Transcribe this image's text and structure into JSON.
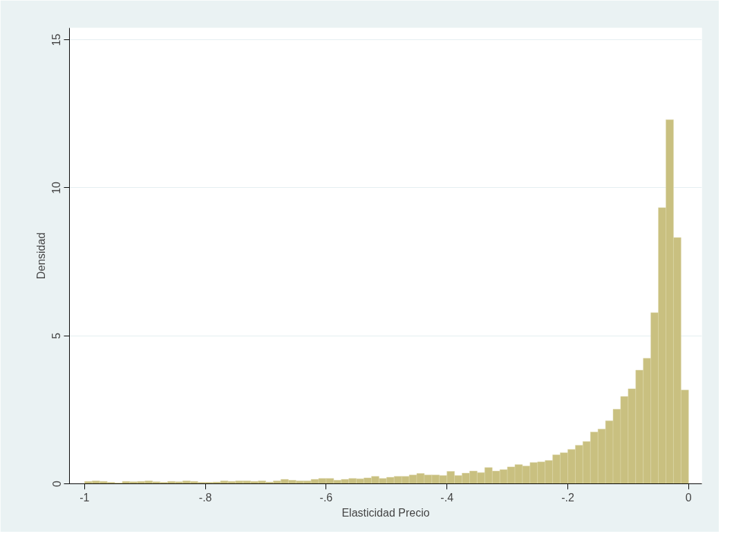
{
  "chart_data": {
    "type": "histogram",
    "xlabel": "Elasticidad Precio",
    "ylabel": "Densidad",
    "color": "#c9c080",
    "bins": [
      -1,
      -0.9875,
      -0.975,
      -0.9625,
      -0.95,
      -0.9375,
      -0.925,
      -0.9125,
      -0.9,
      -0.8875,
      -0.875,
      -0.8625,
      -0.85,
      -0.8375,
      -0.825,
      -0.8125,
      -0.8,
      -0.7875,
      -0.775,
      -0.7625,
      -0.75,
      -0.7375,
      -0.725,
      -0.7125,
      -0.7,
      -0.6875,
      -0.675,
      -0.6625,
      -0.65,
      -0.6375,
      -0.625,
      -0.6125,
      -0.6,
      -0.5875,
      -0.575,
      -0.5625,
      -0.55,
      -0.5375,
      -0.525,
      -0.5125,
      -0.5,
      -0.4875,
      -0.475,
      -0.4625,
      -0.45,
      -0.4375,
      -0.425,
      -0.4125,
      -0.4,
      -0.3875,
      -0.375,
      -0.3625,
      -0.35,
      -0.3375,
      -0.325,
      -0.3125,
      -0.3,
      -0.2875,
      -0.275,
      -0.2625,
      -0.25,
      -0.2375,
      -0.225,
      -0.2125,
      -0.2,
      -0.1875,
      -0.175,
      -0.1625,
      -0.15,
      -0.1375,
      -0.125,
      -0.1125,
      -0.1,
      -0.0875,
      -0.075,
      -0.0625,
      -0.05,
      -0.0375,
      -0.025,
      -0.0125,
      0
    ],
    "values": [
      0.08,
      0.1,
      0.08,
      0.05,
      0.03,
      0.08,
      0.07,
      0.08,
      0.1,
      0.07,
      0.05,
      0.08,
      0.07,
      0.1,
      0.08,
      0.05,
      0.05,
      0.06,
      0.1,
      0.08,
      0.1,
      0.1,
      0.08,
      0.1,
      0.06,
      0.1,
      0.15,
      0.12,
      0.1,
      0.1,
      0.15,
      0.18,
      0.18,
      0.12,
      0.15,
      0.18,
      0.17,
      0.2,
      0.25,
      0.18,
      0.22,
      0.25,
      0.25,
      0.3,
      0.35,
      0.3,
      0.3,
      0.28,
      0.42,
      0.28,
      0.36,
      0.43,
      0.38,
      0.55,
      0.43,
      0.48,
      0.57,
      0.65,
      0.6,
      0.72,
      0.74,
      0.79,
      0.98,
      1.05,
      1.16,
      1.3,
      1.43,
      1.75,
      1.85,
      2.13,
      2.52,
      2.95,
      3.21,
      3.84,
      4.24,
      5.78,
      9.33,
      12.3,
      8.32,
      3.17
    ],
    "xlim": [
      -1.025,
      0.022
    ],
    "ylim": [
      0,
      15.4
    ],
    "xticks": [
      {
        "value": -1,
        "label": "-1"
      },
      {
        "value": -0.8,
        "label": "-.8"
      },
      {
        "value": -0.6,
        "label": "-.6"
      },
      {
        "value": -0.4,
        "label": "-.4"
      },
      {
        "value": -0.2,
        "label": "-.2"
      },
      {
        "value": 0,
        "label": "0"
      }
    ],
    "yticks": [
      0,
      5,
      10,
      15
    ],
    "grid": "y"
  }
}
